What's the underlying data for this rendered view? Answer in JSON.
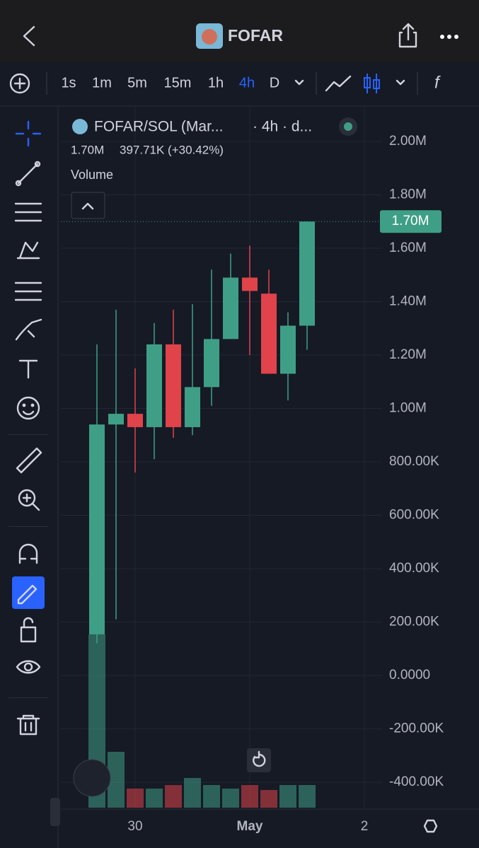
{
  "header": {
    "title": "FOFAR"
  },
  "toolbar": {
    "intervals": [
      "1s",
      "1m",
      "5m",
      "15m",
      "1h",
      "4h",
      "D"
    ]
  },
  "chart_data": {
    "type": "candlestick",
    "symbol": "FOFAR/SOL (Mar...",
    "interval": "· 4h · d...",
    "last_value": "1.70M",
    "change": "397.71K (+30.42%)",
    "study": "Volume",
    "categories": [
      null,
      null,
      "30",
      null,
      null,
      null,
      null,
      null,
      "May",
      null,
      null,
      null,
      null,
      null,
      "2"
    ],
    "open": [
      154000,
      940000,
      980000,
      930000,
      1240000,
      930000,
      1080000,
      1260000,
      1490000,
      1430000,
      1130000,
      1310000,
      null,
      null,
      null
    ],
    "high": [
      1240000,
      1370000,
      1150000,
      1320000,
      1370000,
      1390000,
      1520000,
      1580000,
      1610000,
      1520000,
      1360000,
      1700000,
      null,
      null,
      null
    ],
    "low": [
      120000,
      210000,
      760000,
      810000,
      890000,
      900000,
      1010000,
      1260000,
      1200000,
      1130000,
      1030000,
      1220000,
      null,
      null,
      null
    ],
    "close": [
      940000,
      980000,
      930000,
      1240000,
      930000,
      1080000,
      1260000,
      1490000,
      1440000,
      1130000,
      1310000,
      1700000,
      null,
      null,
      null
    ],
    "volume": [
      245,
      79,
      27,
      27,
      32,
      42,
      32,
      27,
      32,
      25,
      32,
      32,
      null,
      null,
      null
    ],
    "up_color": "#3f9f86",
    "down_color": "#e0434a",
    "ylim": [
      -495000,
      2127000
    ],
    "yticks": [
      {
        "value": 2000000,
        "label": "2.00M"
      },
      {
        "value": 1800000,
        "label": "1.80M"
      },
      {
        "value": 1600000,
        "label": "1.60M"
      },
      {
        "value": 1400000,
        "label": "1.40M"
      },
      {
        "value": 1200000,
        "label": "1.20M"
      },
      {
        "value": 1000000,
        "label": "1.00M"
      },
      {
        "value": 800000,
        "label": "800.00K"
      },
      {
        "value": 600000,
        "label": "600.00K"
      },
      {
        "value": 400000,
        "label": "400.00K"
      },
      {
        "value": 200000,
        "label": "200.00K"
      },
      {
        "value": 0,
        "label": "0.0000"
      },
      {
        "value": -200000,
        "label": "-200.00K"
      },
      {
        "value": -400000,
        "label": "-400.00K"
      }
    ],
    "price_line": {
      "value": 1700000,
      "label": "1.70M"
    },
    "grid": true
  }
}
